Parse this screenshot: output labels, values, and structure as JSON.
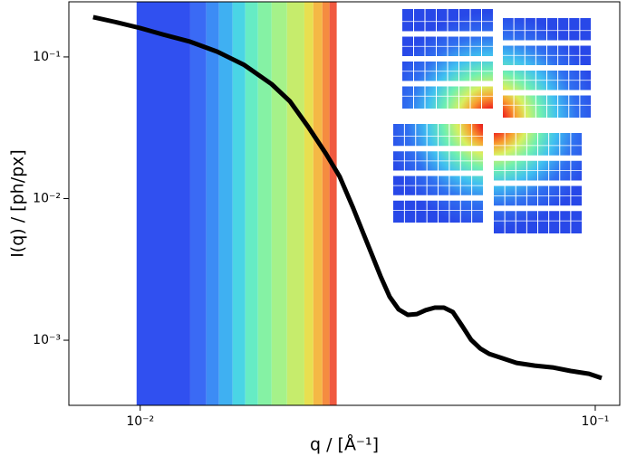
{
  "chart_data": {
    "type": "line",
    "xlabel": "q / [Å⁻¹]",
    "ylabel": "I(q) / [ph/px]",
    "xscale": "log",
    "yscale": "log",
    "grid": false,
    "xlim": [
      0.00697,
      0.1132
    ],
    "ylim": [
      0.000347,
      0.245
    ],
    "xticks": [
      {
        "value": 0.01,
        "label": "10⁻²"
      },
      {
        "value": 0.1,
        "label": "10⁻¹"
      }
    ],
    "yticks": [
      {
        "value": 0.001,
        "label": "10⁻³"
      },
      {
        "value": 0.01,
        "label": "10⁻²"
      },
      {
        "value": 0.1,
        "label": "10⁻¹"
      }
    ],
    "bands": {
      "edges": [
        0.00982,
        0.01288,
        0.01397,
        0.0149,
        0.01596,
        0.01702,
        0.01815,
        0.01945,
        0.02102,
        0.02295,
        0.02401,
        0.02514,
        0.02606,
        0.02703
      ],
      "colors": [
        "#3050f0",
        "#3a6af5",
        "#3c8cf5",
        "#3fb0f2",
        "#4ad5e5",
        "#66ecc4",
        "#85f2a4",
        "#a5f28a",
        "#c6ec6c",
        "#e8df50",
        "#f5b845",
        "#f58c40",
        "#f05a40"
      ]
    },
    "series": [
      {
        "color": "#000000",
        "x": [
          0.00788,
          0.00892,
          0.01,
          0.01122,
          0.01288,
          0.01477,
          0.01694,
          0.01945,
          0.02133,
          0.02338,
          0.02561,
          0.02743,
          0.02938,
          0.03076,
          0.03222,
          0.03373,
          0.03532,
          0.03698,
          0.03873,
          0.04055,
          0.0424,
          0.0444,
          0.0465,
          0.04865,
          0.05094,
          0.05333,
          0.05585,
          0.05847,
          0.06266,
          0.06714,
          0.07362,
          0.08054,
          0.08831,
          0.09684,
          0.1033
        ],
        "values": [
          0.191,
          0.175,
          0.16,
          0.144,
          0.128,
          0.109,
          0.0876,
          0.0643,
          0.0486,
          0.0322,
          0.0207,
          0.01434,
          0.00857,
          0.00593,
          0.0041,
          0.00284,
          0.00203,
          0.00165,
          0.00151,
          0.00153,
          0.00163,
          0.0017,
          0.0017,
          0.00158,
          0.00127,
          0.00101,
          0.000875,
          0.000801,
          0.000745,
          0.000692,
          0.000662,
          0.000643,
          0.000607,
          0.00058,
          0.00054
        ]
      }
    ]
  }
}
